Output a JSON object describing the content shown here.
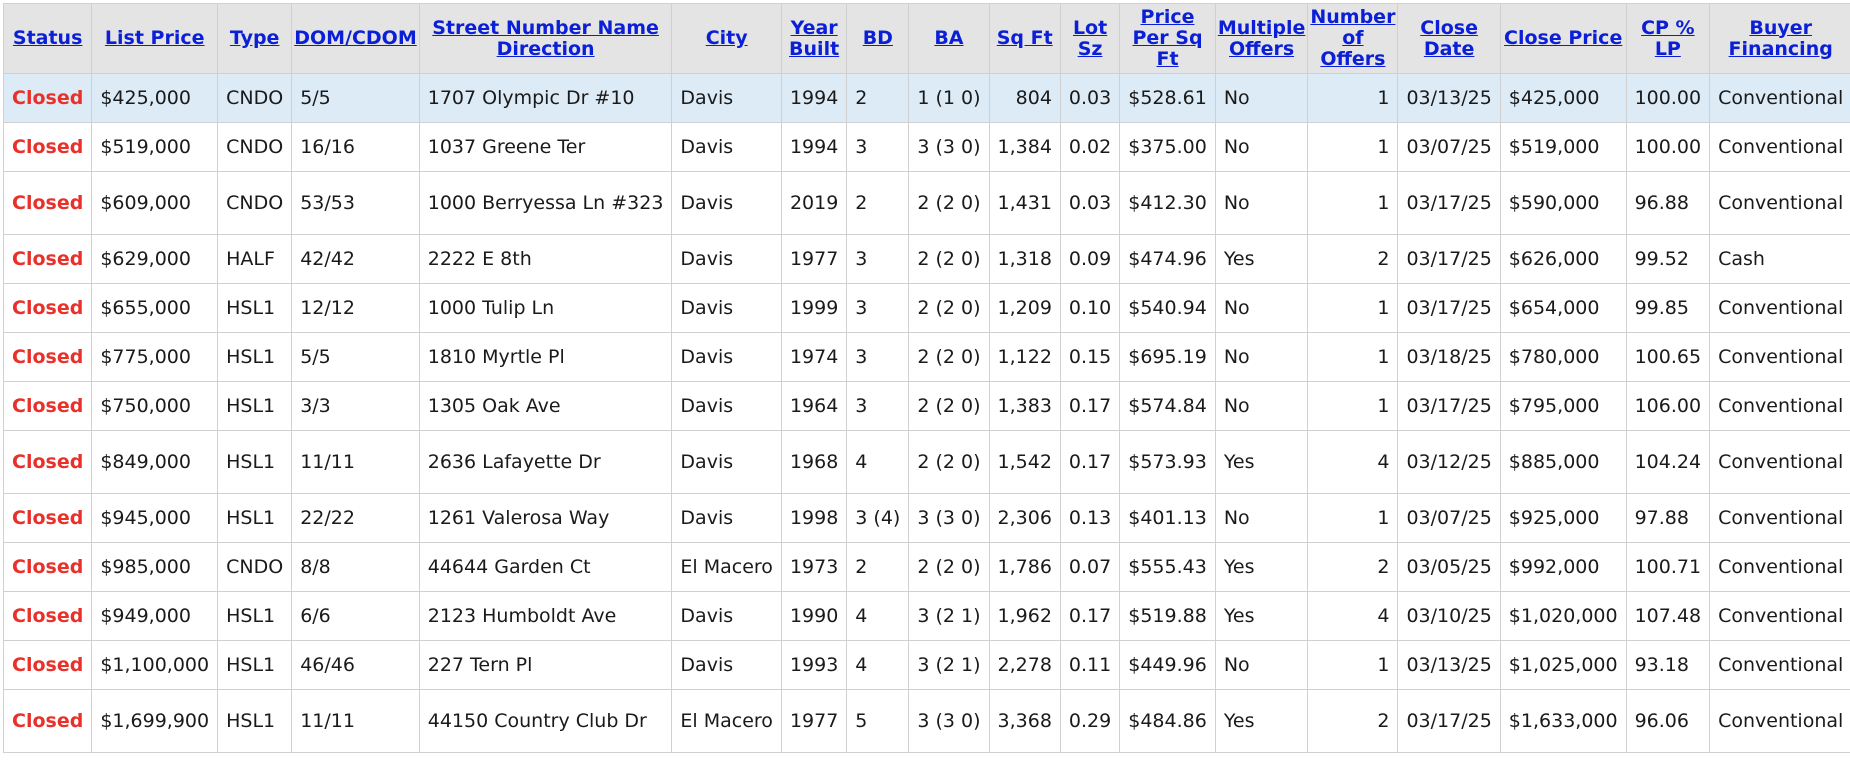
{
  "columns": [
    "Status",
    "List Price",
    "Type",
    "DOM/CDOM",
    "Street Number Name Direction",
    "City",
    "Year Built",
    "BD",
    "BA",
    "Sq Ft",
    "Lot Sz",
    "Price Per Sq Ft",
    "Multiple Offers",
    "Number of Offers",
    "Close Date",
    "Close Price",
    "CP % LP",
    "Buyer Financing"
  ],
  "rows": [
    [
      "Closed",
      "$425,000",
      "CNDO",
      "5/5",
      "1707 Olympic Dr #10",
      "Davis",
      "1994",
      "2",
      "1 (1 0)",
      "804",
      "0.03",
      "$528.61",
      "No",
      "1",
      "03/13/25",
      "$425,000",
      "100.00",
      "Conventional"
    ],
    [
      "Closed",
      "$519,000",
      "CNDO",
      "16/16",
      "1037 Greene Ter",
      "Davis",
      "1994",
      "3",
      "3 (3 0)",
      "1,384",
      "0.02",
      "$375.00",
      "No",
      "1",
      "03/07/25",
      "$519,000",
      "100.00",
      "Conventional"
    ],
    [
      "Closed",
      "$609,000",
      "CNDO",
      "53/53",
      "1000 Berryessa Ln #323",
      "Davis",
      "2019",
      "2",
      "2 (2 0)",
      "1,431",
      "0.03",
      "$412.30",
      "No",
      "1",
      "03/17/25",
      "$590,000",
      "96.88",
      "Conventional"
    ],
    [
      "Closed",
      "$629,000",
      "HALF",
      "42/42",
      "2222 E 8th",
      "Davis",
      "1977",
      "3",
      "2 (2 0)",
      "1,318",
      "0.09",
      "$474.96",
      "Yes",
      "2",
      "03/17/25",
      "$626,000",
      "99.52",
      "Cash"
    ],
    [
      "Closed",
      "$655,000",
      "HSL1",
      "12/12",
      "1000 Tulip Ln",
      "Davis",
      "1999",
      "3",
      "2 (2 0)",
      "1,209",
      "0.10",
      "$540.94",
      "No",
      "1",
      "03/17/25",
      "$654,000",
      "99.85",
      "Conventional"
    ],
    [
      "Closed",
      "$775,000",
      "HSL1",
      "5/5",
      "1810 Myrtle Pl",
      "Davis",
      "1974",
      "3",
      "2 (2 0)",
      "1,122",
      "0.15",
      "$695.19",
      "No",
      "1",
      "03/18/25",
      "$780,000",
      "100.65",
      "Conventional"
    ],
    [
      "Closed",
      "$750,000",
      "HSL1",
      "3/3",
      "1305 Oak Ave",
      "Davis",
      "1964",
      "3",
      "2 (2 0)",
      "1,383",
      "0.17",
      "$574.84",
      "No",
      "1",
      "03/17/25",
      "$795,000",
      "106.00",
      "Conventional"
    ],
    [
      "Closed",
      "$849,000",
      "HSL1",
      "11/11",
      "2636 Lafayette Dr",
      "Davis",
      "1968",
      "4",
      "2 (2 0)",
      "1,542",
      "0.17",
      "$573.93",
      "Yes",
      "4",
      "03/12/25",
      "$885,000",
      "104.24",
      "Conventional"
    ],
    [
      "Closed",
      "$945,000",
      "HSL1",
      "22/22",
      "1261 Valerosa Way",
      "Davis",
      "1998",
      "3 (4)",
      "3 (3 0)",
      "2,306",
      "0.13",
      "$401.13",
      "No",
      "1",
      "03/07/25",
      "$925,000",
      "97.88",
      "Conventional"
    ],
    [
      "Closed",
      "$985,000",
      "CNDO",
      "8/8",
      "44644 Garden Ct",
      "El Macero",
      "1973",
      "2",
      "2 (2 0)",
      "1,786",
      "0.07",
      "$555.43",
      "Yes",
      "2",
      "03/05/25",
      "$992,000",
      "100.71",
      "Conventional"
    ],
    [
      "Closed",
      "$949,000",
      "HSL1",
      "6/6",
      "2123 Humboldt Ave",
      "Davis",
      "1990",
      "4",
      "3 (2 1)",
      "1,962",
      "0.17",
      "$519.88",
      "Yes",
      "4",
      "03/10/25",
      "$1,020,000",
      "107.48",
      "Conventional"
    ],
    [
      "Closed",
      "$1,100,000",
      "HSL1",
      "46/46",
      "227 Tern Pl",
      "Davis",
      "1993",
      "4",
      "3 (2 1)",
      "2,278",
      "0.11",
      "$449.96",
      "No",
      "1",
      "03/13/25",
      "$1,025,000",
      "93.18",
      "Conventional"
    ],
    [
      "Closed",
      "$1,699,900",
      "HSL1",
      "11/11",
      "44150 Country Club Dr",
      "El Macero",
      "1977",
      "5",
      "3 (3 0)",
      "3,368",
      "0.29",
      "$484.86",
      "Yes",
      "2",
      "03/17/25",
      "$1,633,000",
      "96.06",
      "Conventional"
    ]
  ],
  "colors": {
    "status": "#e8312a",
    "header_link": "#0b1fd6",
    "header_bg": "#e4e4e4",
    "selected_row": "#ddebf6"
  }
}
